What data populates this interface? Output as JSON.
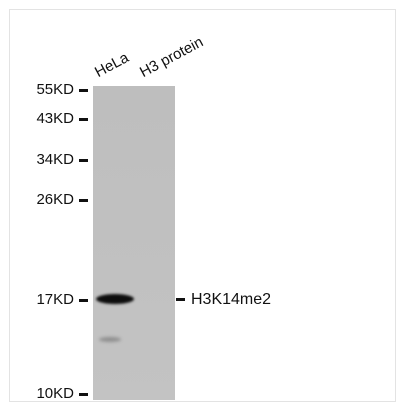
{
  "lanes": [
    "HeLa",
    "H3 protein"
  ],
  "markers": [
    "55KD",
    "43KD",
    "34KD",
    "26KD",
    "17KD",
    "10KD"
  ],
  "band_label": "H3K14me2"
}
